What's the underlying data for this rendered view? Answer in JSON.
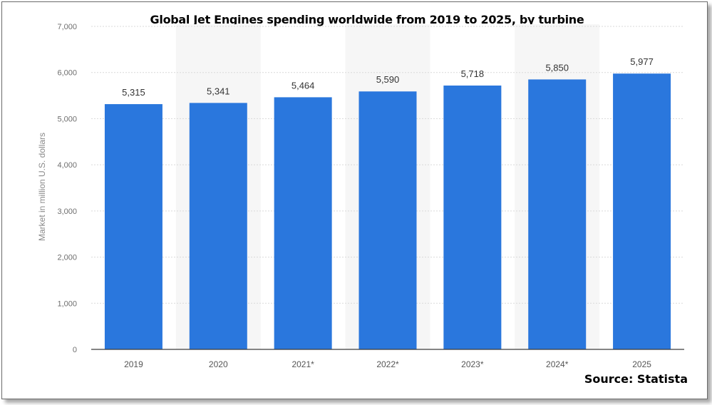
{
  "chart_data": {
    "type": "bar",
    "title": "Global Jet Engines spending worldwide from 2019 to 2025, by turbine",
    "ylabel": "Market in million U.S. dollars",
    "xlabel": "",
    "categories": [
      "2019",
      "2020",
      "2021*",
      "2022*",
      "2023*",
      "2024*",
      "2025"
    ],
    "values": [
      5315,
      5341,
      5464,
      5590,
      5718,
      5850,
      5977
    ],
    "value_labels": [
      "5,315",
      "5,341",
      "5,464",
      "5,590",
      "5,718",
      "5,850",
      "5,977"
    ],
    "ylim": [
      0,
      7000
    ],
    "yticks": [
      0,
      1000,
      2000,
      3000,
      4000,
      5000,
      6000,
      7000
    ],
    "ytick_labels": [
      "0",
      "1,000",
      "2,000",
      "3,000",
      "4,000",
      "5,000",
      "6,000",
      "7,000"
    ],
    "grid": true,
    "bar_color": "#2a77dd",
    "source": "Source: Statista"
  }
}
